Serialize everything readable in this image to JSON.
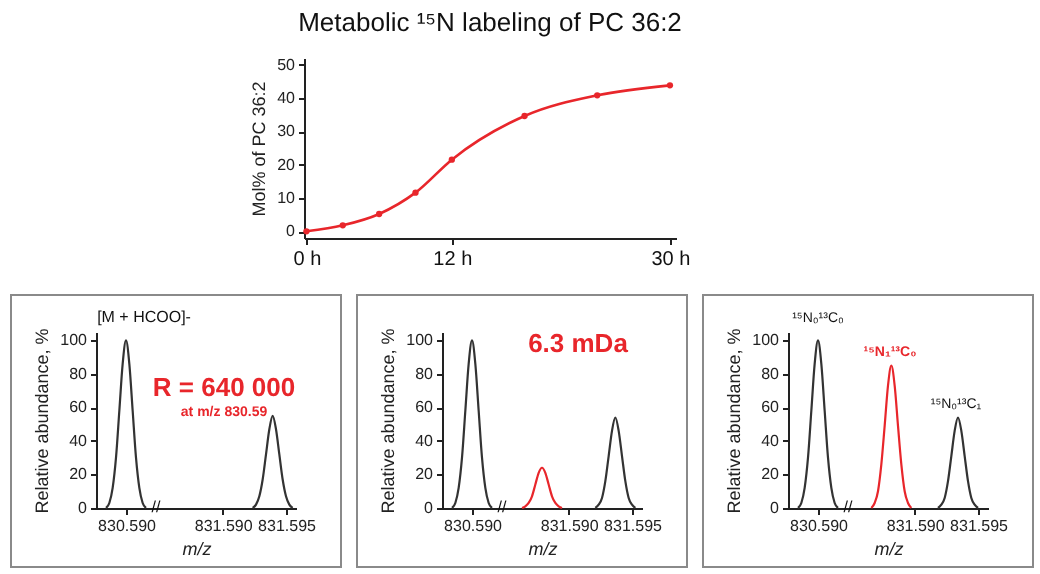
{
  "chart_data": [
    {
      "type": "line",
      "title": "Metabolic ¹⁵N labeling of PC 36:2",
      "ylabel": "Mol% of PC 36:2",
      "x": [
        0,
        3,
        6,
        9,
        12,
        18,
        24,
        30
      ],
      "xlim": [
        -0.2,
        30.5
      ],
      "xticks": [
        {
          "value": 0,
          "label": "0 h"
        },
        {
          "value": 12,
          "label": "12 h"
        },
        {
          "value": 30,
          "label": "30 h"
        }
      ],
      "ylim": [
        -2,
        52
      ],
      "yticks": [
        0,
        10,
        20,
        30,
        40,
        50
      ],
      "marker": "circle",
      "line_style": "solid",
      "series": [
        {
          "color": "#e8262b",
          "values": [
            0,
            1.8,
            5.2,
            11.6,
            21.5,
            34.6,
            40.8,
            43.8
          ]
        }
      ]
    },
    {
      "type": "line",
      "xlabel": "m/z",
      "ylabel": "Relative abundance, %",
      "ylim": [
        0,
        105
      ],
      "yticks": [
        0,
        20,
        40,
        60,
        80,
        100
      ],
      "annotations": [
        "[M + HCOO]-",
        "R = 640 000",
        "at m/z 830.59",
        "//"
      ],
      "categories": [
        null,
        null,
        null,
        null,
        null,
        null,
        null,
        null,
        null,
        "830.590",
        null,
        null,
        null,
        null,
        null,
        null,
        null,
        null,
        null,
        null,
        null,
        null,
        null,
        null,
        null,
        null,
        null,
        null,
        null,
        null,
        null,
        null,
        null,
        null,
        null,
        null,
        null,
        null,
        "831.590",
        null,
        null,
        null,
        null,
        null,
        null,
        null,
        null,
        null,
        null,
        null,
        null,
        null,
        null,
        null,
        null,
        null,
        null,
        "831.595",
        null,
        null,
        null
      ],
      "series": [
        {
          "color": "#333333",
          "values": [
            null,
            null,
            null,
            0,
            3,
            12,
            30,
            58,
            86,
            100,
            86,
            58,
            30,
            12,
            3,
            0,
            null,
            null,
            null,
            null,
            null,
            null,
            null,
            null,
            null,
            null,
            null,
            null,
            null,
            null,
            null,
            null,
            null,
            null,
            null,
            null,
            null,
            null,
            null,
            null,
            null,
            null,
            null,
            null,
            null,
            null,
            null,
            null,
            null,
            null,
            null,
            null,
            null,
            null,
            null,
            null,
            null,
            null,
            null,
            null,
            null
          ]
        },
        {
          "color": "#333333",
          "values": [
            null,
            null,
            null,
            null,
            null,
            null,
            null,
            null,
            null,
            null,
            null,
            null,
            null,
            null,
            null,
            null,
            null,
            null,
            null,
            null,
            null,
            null,
            null,
            null,
            null,
            null,
            null,
            null,
            null,
            null,
            null,
            null,
            null,
            null,
            null,
            null,
            null,
            null,
            null,
            null,
            null,
            null,
            null,
            null,
            null,
            null,
            null,
            0,
            2,
            7,
            17,
            32,
            47,
            55,
            47,
            32,
            17,
            7,
            2,
            0,
            null
          ]
        }
      ]
    },
    {
      "type": "line",
      "xlabel": "m/z",
      "ylabel": "Relative abundance, %",
      "ylim": [
        0,
        105
      ],
      "yticks": [
        0,
        20,
        40,
        60,
        80,
        100
      ],
      "annotations": [
        "6.3 mDa",
        "//"
      ],
      "categories": [
        null,
        null,
        null,
        null,
        null,
        null,
        null,
        null,
        null,
        "830.590",
        null,
        null,
        null,
        null,
        null,
        null,
        null,
        null,
        null,
        null,
        null,
        null,
        null,
        null,
        null,
        null,
        null,
        null,
        null,
        null,
        null,
        null,
        null,
        null,
        null,
        null,
        null,
        null,
        "831.590",
        null,
        null,
        null,
        null,
        null,
        null,
        null,
        null,
        null,
        null,
        null,
        null,
        null,
        null,
        null,
        null,
        null,
        null,
        "831.595",
        null,
        null,
        null
      ],
      "series": [
        {
          "color": "#333333",
          "values": [
            null,
            null,
            null,
            0,
            3,
            12,
            30,
            58,
            86,
            100,
            86,
            58,
            30,
            12,
            3,
            0,
            null,
            null,
            null,
            null,
            null,
            null,
            null,
            null,
            null,
            null,
            null,
            null,
            null,
            null,
            null,
            null,
            null,
            null,
            null,
            null,
            null,
            null,
            null,
            null,
            null,
            null,
            null,
            null,
            null,
            null,
            null,
            null,
            null,
            null,
            null,
            null,
            null,
            null,
            null,
            null,
            null,
            null,
            null,
            null,
            null
          ]
        },
        {
          "color": "#e8262b",
          "values": [
            null,
            null,
            null,
            null,
            null,
            null,
            null,
            null,
            null,
            null,
            null,
            null,
            null,
            null,
            null,
            null,
            null,
            null,
            null,
            null,
            null,
            null,
            null,
            null,
            0,
            1,
            3,
            7,
            14,
            21,
            24,
            21,
            14,
            7,
            3,
            1,
            0,
            null,
            null,
            null,
            null,
            null,
            null,
            null,
            null,
            null,
            null,
            null,
            null,
            null,
            null,
            null,
            null,
            null,
            null,
            null,
            null,
            null,
            null,
            null,
            null
          ]
        },
        {
          "color": "#333333",
          "values": [
            null,
            null,
            null,
            null,
            null,
            null,
            null,
            null,
            null,
            null,
            null,
            null,
            null,
            null,
            null,
            null,
            null,
            null,
            null,
            null,
            null,
            null,
            null,
            null,
            null,
            null,
            null,
            null,
            null,
            null,
            null,
            null,
            null,
            null,
            null,
            null,
            null,
            null,
            null,
            null,
            null,
            null,
            null,
            null,
            null,
            null,
            0,
            2,
            6,
            16,
            31,
            46,
            54,
            46,
            31,
            16,
            6,
            2,
            0,
            null,
            null
          ]
        }
      ]
    },
    {
      "type": "line",
      "xlabel": "m/z",
      "ylabel": "Relative abundance, %",
      "ylim": [
        0,
        105
      ],
      "yticks": [
        0,
        20,
        40,
        60,
        80,
        100
      ],
      "annotations": [
        "¹⁵N₀¹³C₀",
        "¹⁵N₁¹³C₀",
        "¹⁵N₀¹³C₁",
        "//"
      ],
      "categories": [
        null,
        null,
        null,
        null,
        null,
        null,
        null,
        null,
        null,
        "830.590",
        null,
        null,
        null,
        null,
        null,
        null,
        null,
        null,
        null,
        null,
        null,
        null,
        null,
        null,
        null,
        null,
        null,
        null,
        null,
        null,
        null,
        null,
        null,
        null,
        null,
        null,
        null,
        null,
        "831.590",
        null,
        null,
        null,
        null,
        null,
        null,
        null,
        null,
        null,
        null,
        null,
        null,
        null,
        null,
        null,
        null,
        null,
        null,
        "831.595",
        null,
        null,
        null
      ],
      "series": [
        {
          "color": "#333333",
          "values": [
            null,
            null,
            null,
            0,
            3,
            12,
            30,
            58,
            86,
            100,
            86,
            58,
            30,
            12,
            3,
            0,
            null,
            null,
            null,
            null,
            null,
            null,
            null,
            null,
            null,
            null,
            null,
            null,
            null,
            null,
            null,
            null,
            null,
            null,
            null,
            null,
            null,
            null,
            null,
            null,
            null,
            null,
            null,
            null,
            null,
            null,
            null,
            null,
            null,
            null,
            null,
            null,
            null,
            null,
            null,
            null,
            null,
            null,
            null,
            null,
            null
          ]
        },
        {
          "color": "#e8262b",
          "values": [
            null,
            null,
            null,
            null,
            null,
            null,
            null,
            null,
            null,
            null,
            null,
            null,
            null,
            null,
            null,
            null,
            null,
            null,
            null,
            null,
            null,
            null,
            null,
            null,
            null,
            0,
            3,
            10,
            26,
            49,
            73,
            85,
            73,
            49,
            26,
            10,
            3,
            0,
            null,
            null,
            null,
            null,
            null,
            null,
            null,
            null,
            null,
            null,
            null,
            null,
            null,
            null,
            null,
            null,
            null,
            null,
            null,
            null,
            null,
            null,
            null
          ]
        },
        {
          "color": "#333333",
          "values": [
            null,
            null,
            null,
            null,
            null,
            null,
            null,
            null,
            null,
            null,
            null,
            null,
            null,
            null,
            null,
            null,
            null,
            null,
            null,
            null,
            null,
            null,
            null,
            null,
            null,
            null,
            null,
            null,
            null,
            null,
            null,
            null,
            null,
            null,
            null,
            null,
            null,
            null,
            null,
            null,
            null,
            null,
            null,
            null,
            null,
            0,
            2,
            6,
            16,
            31,
            46,
            54,
            46,
            31,
            16,
            6,
            2,
            0,
            null,
            null,
            null
          ]
        }
      ]
    }
  ]
}
